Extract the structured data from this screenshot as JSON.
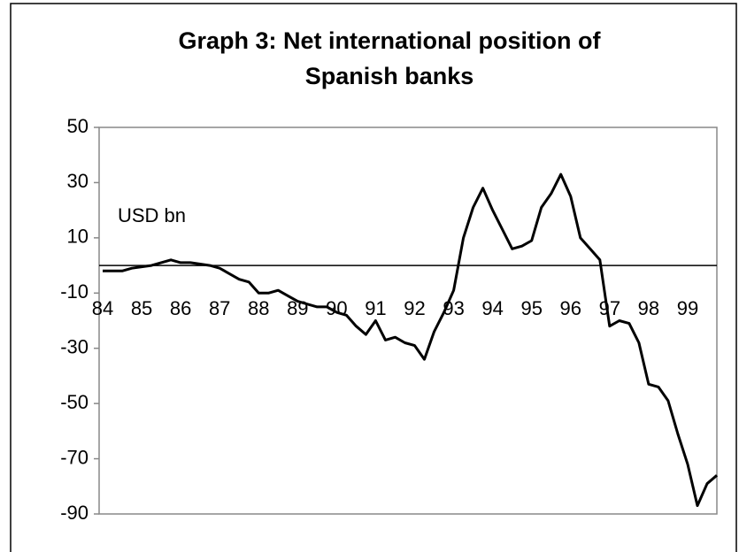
{
  "chart_data": {
    "type": "line",
    "title": "Graph 3:  Net international position of\nSpanish banks",
    "annotation": "USD bn",
    "categories": [
      "84",
      null,
      null,
      null,
      "85",
      null,
      null,
      null,
      "86",
      null,
      null,
      null,
      "87",
      null,
      null,
      null,
      "88",
      null,
      null,
      null,
      "89",
      null,
      null,
      null,
      "90",
      null,
      null,
      null,
      "91",
      null,
      null,
      null,
      "92",
      null,
      null,
      null,
      "93",
      null,
      null,
      null,
      "94",
      null,
      null,
      null,
      "95",
      null,
      null,
      null,
      "96",
      null,
      null,
      null,
      "97",
      null,
      null,
      null,
      "98",
      null,
      null,
      null,
      "99",
      null,
      null,
      null
    ],
    "series": [
      {
        "color": "#000000",
        "values": [
          -2,
          -2,
          -2,
          -1,
          -0.5,
          0,
          1,
          2,
          1,
          1,
          0.5,
          0,
          -1,
          -3,
          -5,
          -6,
          -10,
          -10,
          -9,
          -11,
          -13,
          -14,
          -15,
          -15,
          -17,
          -18,
          -22,
          -25,
          -20,
          -27,
          -26,
          -28,
          -29,
          -34,
          -24,
          -17,
          -9,
          10,
          21,
          28,
          20,
          13,
          6,
          7,
          9,
          21,
          26,
          33,
          25,
          10,
          6,
          2,
          -22,
          -20,
          -21,
          -28,
          -43,
          -44,
          -49,
          -61,
          -72,
          -87,
          -79,
          -76
        ]
      }
    ],
    "ylim": [
      -90,
      50
    ],
    "yticks": [
      -90,
      -70,
      -50,
      -30,
      -10,
      10,
      30,
      50
    ]
  }
}
